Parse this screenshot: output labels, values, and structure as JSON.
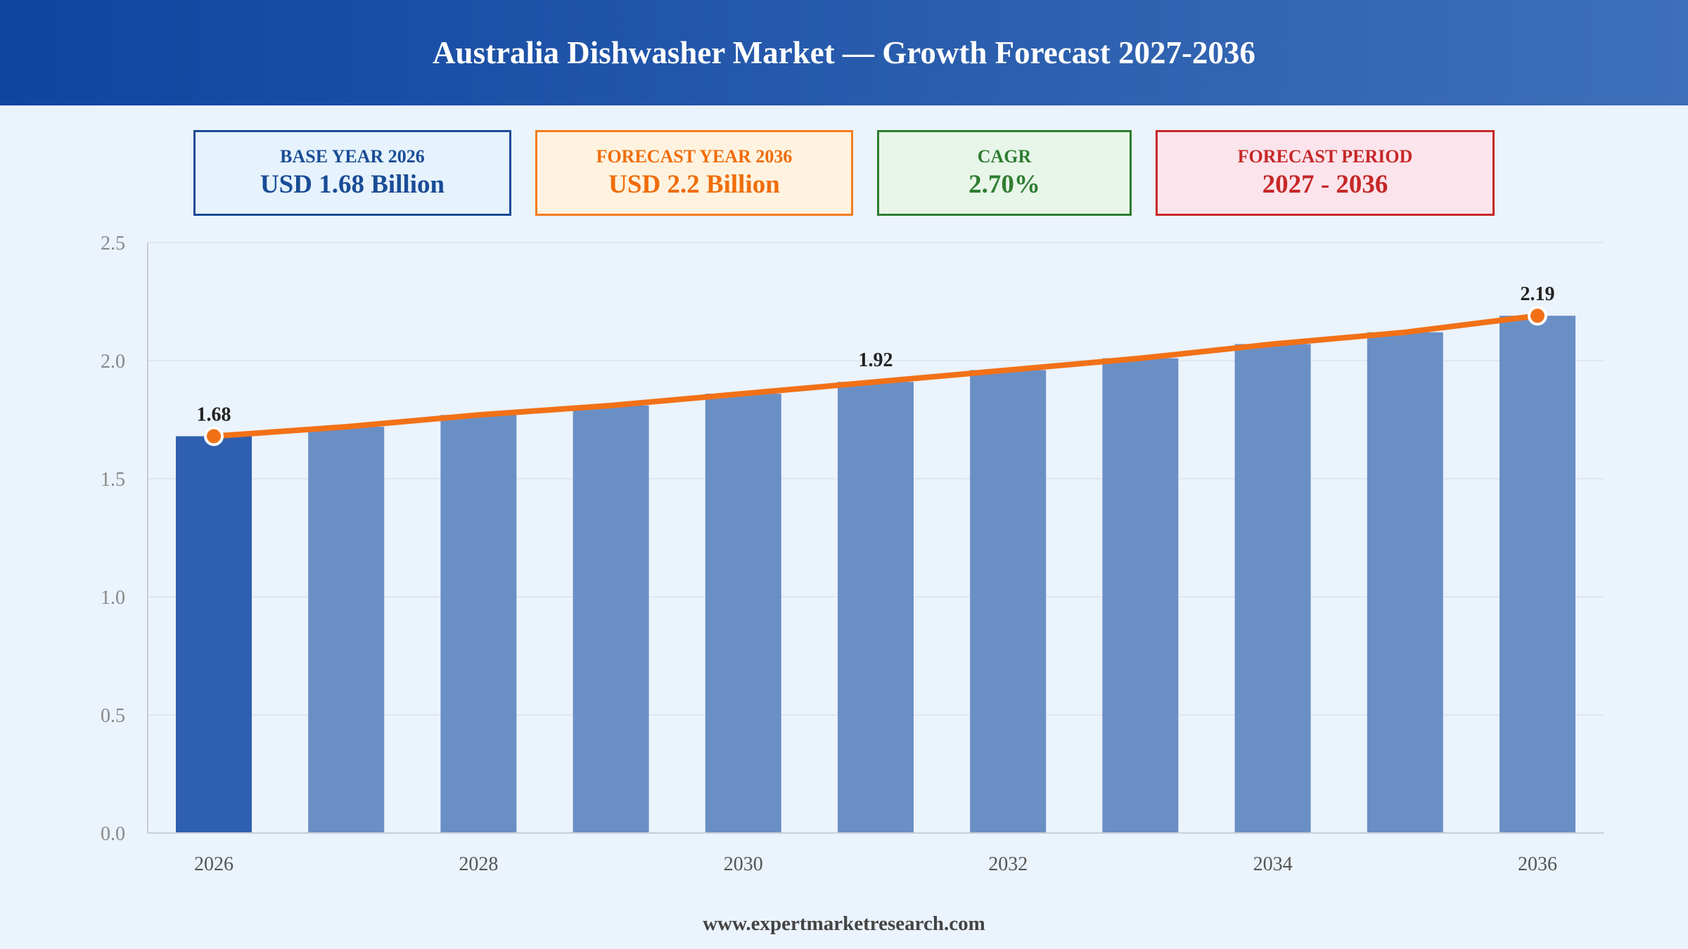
{
  "title": "Australia Dishwasher Market — Growth Forecast 2027-2036",
  "kpis": {
    "base": {
      "label": "BASE YEAR 2026",
      "value": "USD 1.68 Billion"
    },
    "forecast": {
      "label": "FORECAST YEAR 2036",
      "value": "USD 2.2 Billion"
    },
    "cagr": {
      "label": "CAGR",
      "value": "2.70%"
    },
    "period": {
      "label": "FORECAST PERIOD",
      "value": "2027 - 2036"
    }
  },
  "footer": "www.expertmarketresearch.com",
  "colors": {
    "base_bar": "#2f5faf",
    "forecast_bar": "#6a8fc5",
    "trend_line": "#f27117",
    "grid": "#dde3ea",
    "axis_text": "#888888",
    "label_text": "#222222"
  },
  "chart_data": {
    "type": "bar",
    "categories": [
      "2026",
      "2027",
      "2028",
      "2029",
      "2030",
      "2031",
      "2032",
      "2033",
      "2034",
      "2035",
      "2036"
    ],
    "values": [
      1.68,
      1.72,
      1.77,
      1.81,
      1.86,
      1.91,
      1.96,
      2.01,
      2.07,
      2.12,
      2.19
    ],
    "x_tick_labels": [
      "2026",
      "",
      "2028",
      "",
      "2030",
      "",
      "2032",
      "",
      "2034",
      "",
      "2036"
    ],
    "y_ticks": [
      0.0,
      0.5,
      1.0,
      1.5,
      2.0,
      2.5
    ],
    "y_tick_labels": [
      "0.0",
      "0.5",
      "1.0",
      "1.5",
      "2.0",
      "2.5"
    ],
    "ylim": [
      0,
      2.5
    ],
    "grid": true,
    "trend_line": true,
    "annotations": [
      {
        "index": 0,
        "text": "1.68",
        "marker": true
      },
      {
        "index": 5,
        "text": "1.92",
        "marker": false
      },
      {
        "index": 10,
        "text": "2.19",
        "marker": true
      }
    ]
  }
}
